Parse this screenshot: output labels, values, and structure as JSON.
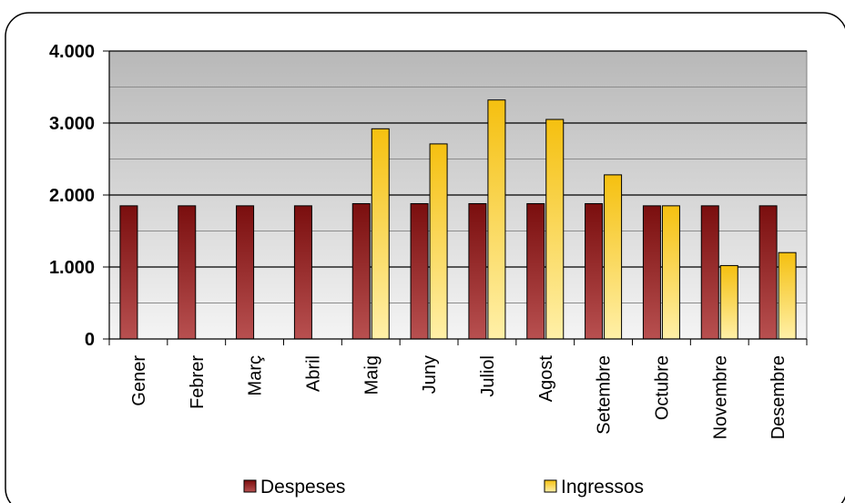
{
  "chart_data": {
    "type": "bar",
    "categories": [
      "Gener",
      "Febrer",
      "Març",
      "Abril",
      "Maig",
      "Juny",
      "Juliol",
      "Agost",
      "Setembre",
      "Octubre",
      "Novembre",
      "Desembre"
    ],
    "series": [
      {
        "name": "Despeses",
        "values": [
          1850,
          1850,
          1850,
          1850,
          1880,
          1880,
          1880,
          1880,
          1880,
          1850,
          1850,
          1850
        ],
        "color": "#8b1a1a"
      },
      {
        "name": "Ingressos",
        "values": [
          0,
          0,
          0,
          0,
          2920,
          2710,
          3320,
          3050,
          2280,
          1850,
          1020,
          1200
        ],
        "color": "#f5c518"
      }
    ],
    "yticks": [
      "0",
      "1.000",
      "2.000",
      "3.000",
      "4.000"
    ],
    "ylim": [
      0,
      4000
    ],
    "grid": true,
    "legend_position": "bottom"
  }
}
